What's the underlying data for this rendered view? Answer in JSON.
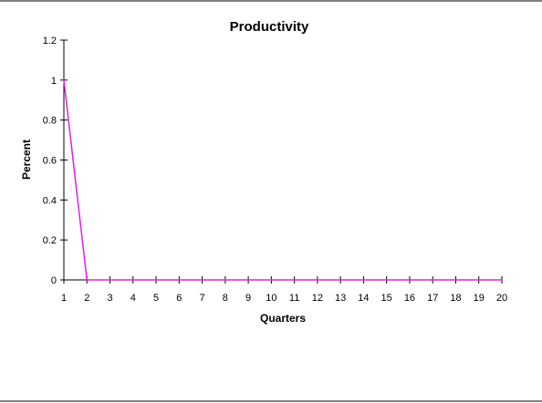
{
  "chart_data": {
    "type": "line",
    "title": "Productivity",
    "xlabel": "Quarters",
    "ylabel": "Percent",
    "x": [
      "1",
      "2",
      "3",
      "4",
      "5",
      "6",
      "7",
      "8",
      "9",
      "10",
      "11",
      "12",
      "13",
      "14",
      "15",
      "16",
      "17",
      "18",
      "19",
      "20"
    ],
    "series": [
      {
        "values": [
          1,
          0,
          0,
          0,
          0,
          0,
          0,
          0,
          0,
          0,
          0,
          0,
          0,
          0,
          0,
          0,
          0,
          0,
          0,
          0
        ],
        "color": "#e020e0"
      }
    ],
    "yticks": [
      "0",
      "0.2",
      "0.4",
      "0.6",
      "0.8",
      "1",
      "1.2"
    ],
    "ylim": [
      0,
      1.2
    ],
    "grid": false,
    "legend": "none"
  }
}
